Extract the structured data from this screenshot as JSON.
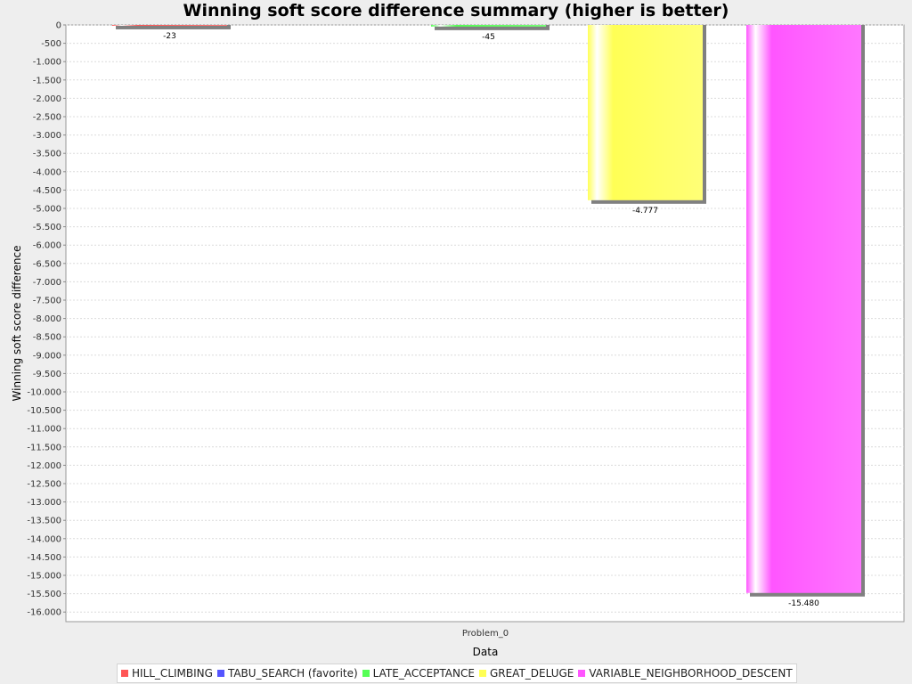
{
  "chart_data": {
    "type": "bar",
    "title": "Winning soft score difference summary (higher is better)",
    "xlabel": "Data",
    "ylabel": "Winning soft score difference",
    "categories": [
      "Problem_0"
    ],
    "ylim": [
      -16200,
      0
    ],
    "yticks": [
      0,
      -500,
      -1000,
      -1500,
      -2000,
      -2500,
      -3000,
      -3500,
      -4000,
      -4500,
      -5000,
      -5500,
      -6000,
      -6500,
      -7000,
      -7500,
      -8000,
      -8500,
      -9000,
      -9500,
      -10000,
      -10500,
      -11000,
      -11500,
      -12000,
      -12500,
      -13000,
      -13500,
      -14000,
      -14500,
      -15000,
      -15500,
      -16000
    ],
    "ytick_labels": [
      "0",
      "-500",
      "-1.000",
      "-1.500",
      "-2.000",
      "-2.500",
      "-3.000",
      "-3.500",
      "-4.000",
      "-4.500",
      "-5.000",
      "-5.500",
      "-6.000",
      "-6.500",
      "-7.000",
      "-7.500",
      "-8.000",
      "-8.500",
      "-9.000",
      "-9.500",
      "-10.000",
      "-10.500",
      "-11.000",
      "-11.500",
      "-12.000",
      "-12.500",
      "-13.000",
      "-13.500",
      "-14.000",
      "-14.500",
      "-15.000",
      "-15.500",
      "-16.000"
    ],
    "grid": true,
    "legend_position": "bottom",
    "series": [
      {
        "name": "HILL_CLIMBING",
        "values": [
          -23
        ],
        "labels": [
          "-23"
        ],
        "color": "#ff5555"
      },
      {
        "name": "TABU_SEARCH (favorite)",
        "values": [
          0
        ],
        "labels": [
          ""
        ],
        "color": "#5555ff"
      },
      {
        "name": "LATE_ACCEPTANCE",
        "values": [
          -45
        ],
        "labels": [
          "-45"
        ],
        "color": "#55ff55"
      },
      {
        "name": "GREAT_DELUGE",
        "values": [
          -4777
        ],
        "labels": [
          "-4.777"
        ],
        "color": "#ffff55"
      },
      {
        "name": "VARIABLE_NEIGHBORHOOD_DESCENT",
        "values": [
          -15480
        ],
        "labels": [
          "-15.480"
        ],
        "color": "#ff55ff"
      }
    ]
  }
}
